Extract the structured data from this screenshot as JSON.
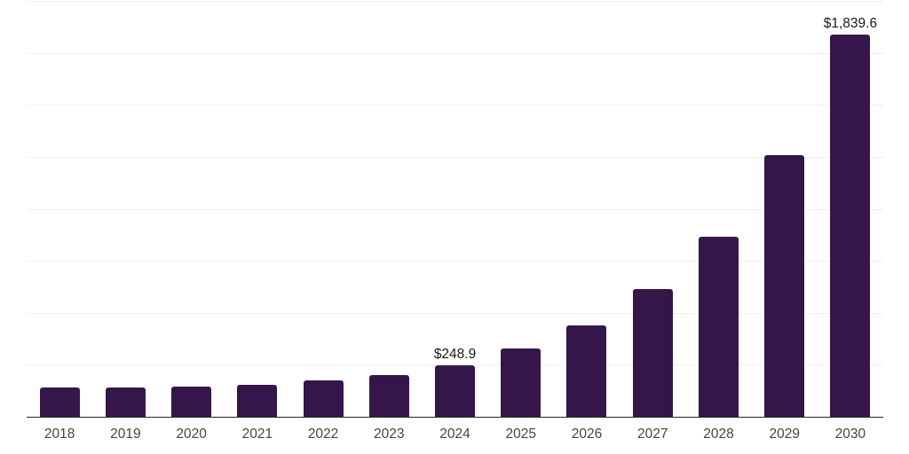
{
  "chart_data": {
    "type": "bar",
    "title": "",
    "xlabel": "",
    "ylabel": "",
    "categories": [
      "2018",
      "2019",
      "2020",
      "2021",
      "2022",
      "2023",
      "2024",
      "2025",
      "2026",
      "2027",
      "2028",
      "2029",
      "2030"
    ],
    "values": [
      139,
      141,
      144,
      152,
      175,
      200,
      248.9,
      328,
      440,
      614,
      864,
      1260,
      1839.6
    ],
    "bar_labels": [
      "",
      "",
      "",
      "",
      "",
      "",
      "$248.9",
      "",
      "",
      "",
      "",
      "",
      "$1,839.6"
    ],
    "ylim": [
      0,
      2000
    ],
    "gridline_values": [
      250,
      500,
      750,
      1000,
      1250,
      1500,
      1750,
      2000
    ],
    "grid": true,
    "legend_position": "none",
    "colors": {
      "bar": "#34164b",
      "axis_line": "#262626",
      "gridline": "#efefef",
      "tick_label": "#454545",
      "data_label": "#1a1a1a",
      "background": "#ffffff"
    }
  }
}
